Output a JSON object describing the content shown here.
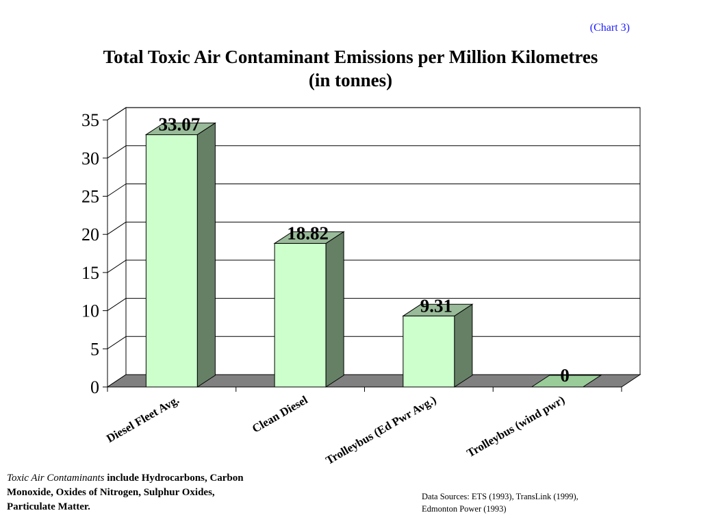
{
  "header": {
    "chart_ref": "(Chart 3)",
    "title_line1": "Total Toxic Air Contaminant Emissions per Million Kilometres",
    "title_line2": "(in tonnes)"
  },
  "footnote": {
    "term": "Toxic Air Contaminants",
    "text": " include Hydrocarbons, Carbon Monoxide, Oxides of Nitrogen, Sulphur Oxides, Particulate Matter."
  },
  "sources": {
    "line1": "Data Sources:  ETS (1993), TransLink (1999),",
    "line2": "Edmonton Power (1993)"
  },
  "colors": {
    "bar_front": "#ccffcc",
    "bar_side": "#668066",
    "bar_top": "#99bb99",
    "zero_bar": "#99cc99",
    "floor": "#808080",
    "chart_ref": "#1a1aff"
  },
  "chart_data": {
    "type": "bar",
    "categories": [
      "Diesel Fleet Avg.",
      "Clean Diesel",
      "Trolleybus (Ed Pwr Avg.)",
      "Trolleybus (wind pwr)"
    ],
    "values": [
      33.07,
      18.82,
      9.31,
      0
    ],
    "data_labels": [
      "33.07",
      "18.82",
      "9.31",
      "0"
    ],
    "ylim": [
      0,
      35
    ],
    "yticks": [
      0,
      5,
      10,
      15,
      20,
      25,
      30,
      35
    ],
    "grid": true,
    "three_d": true
  }
}
